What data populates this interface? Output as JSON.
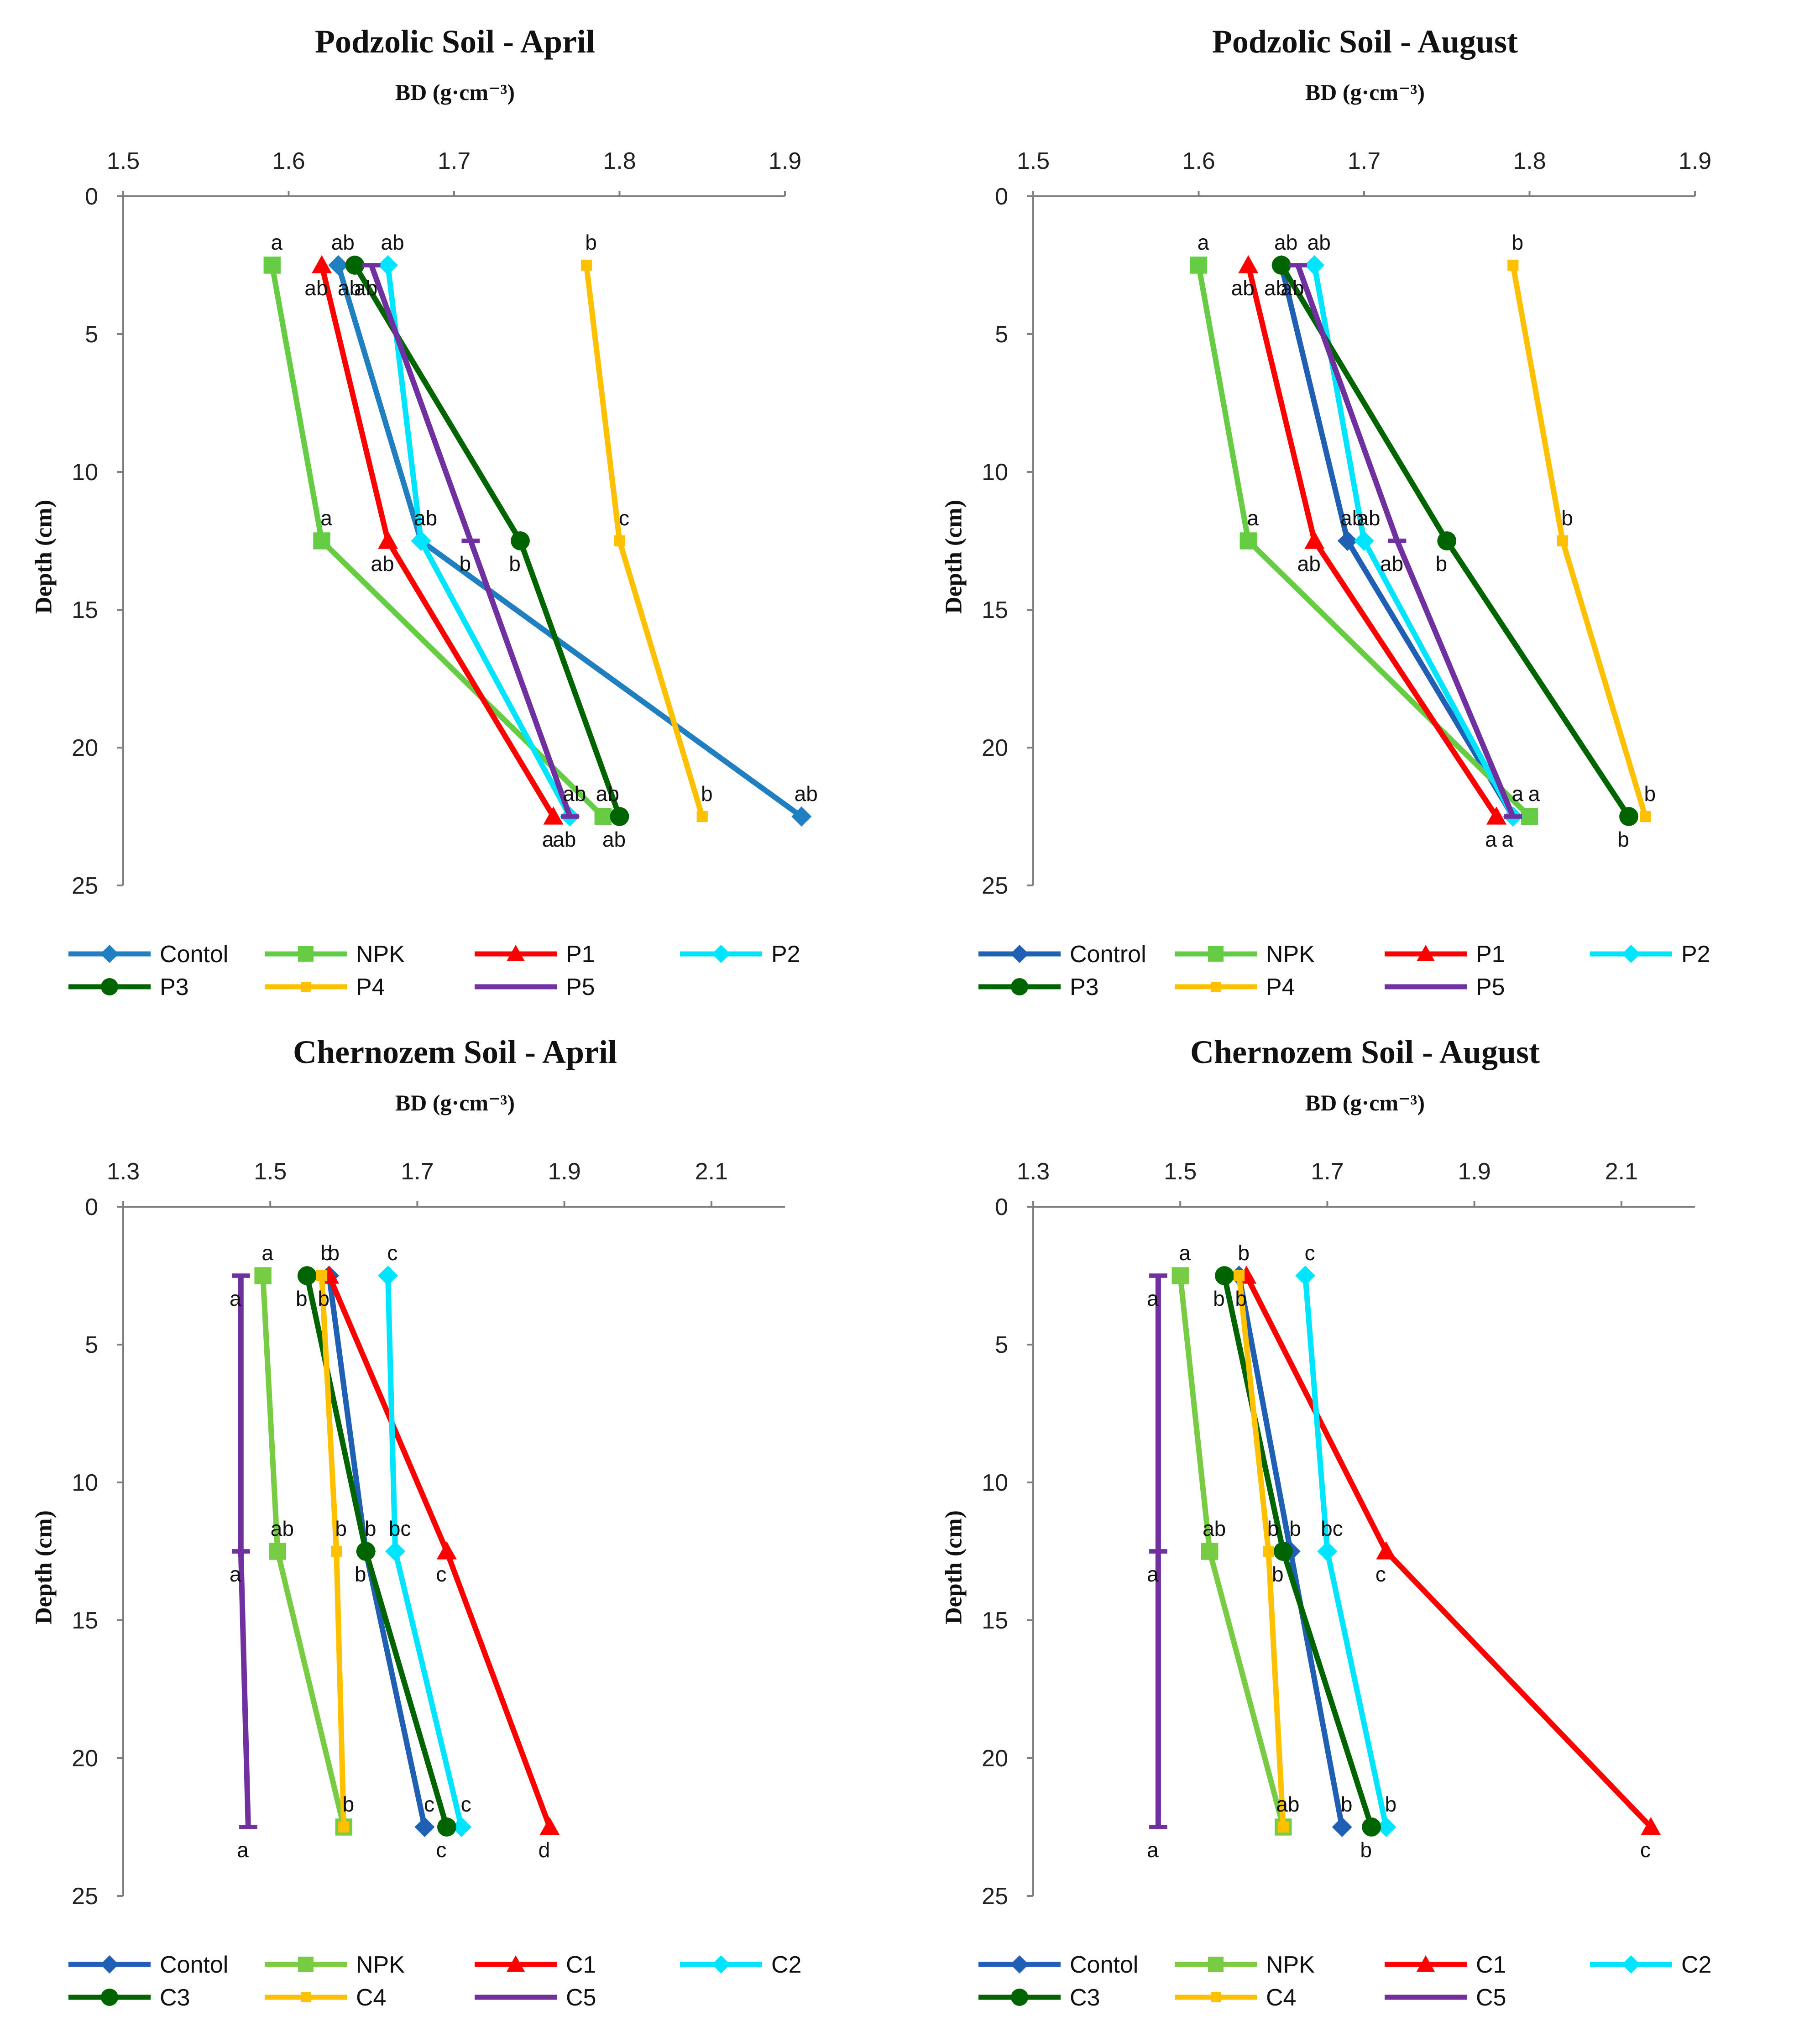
{
  "chart_data": [
    {
      "type": "line",
      "title": "Podzolic Soil - April",
      "xlabel": "BD (g·cm⁻³)",
      "ylabel": "Depth (cm)",
      "xlim": [
        1.5,
        1.9
      ],
      "xticks": [
        "1.5",
        "1.6",
        "1.7",
        "1.8",
        "1.9"
      ],
      "ylim": [
        0,
        25
      ],
      "yticks": [
        "0",
        "5",
        "10",
        "15",
        "20",
        "25"
      ],
      "depths": [
        2.5,
        12.5,
        22.5
      ],
      "series": [
        {
          "name": "Contol",
          "color": "#1f7fc0",
          "marker": "diamond",
          "values": [
            1.63,
            1.68,
            1.91
          ],
          "labels": [
            "ab",
            "ab",
            "ab"
          ]
        },
        {
          "name": "NPK",
          "color": "#66cc44",
          "marker": "square",
          "values": [
            1.59,
            1.62,
            1.79
          ],
          "labels": [
            "a",
            "a",
            "ab"
          ]
        },
        {
          "name": "P1",
          "color": "#ff0000",
          "marker": "triangle",
          "values": [
            1.62,
            1.66,
            1.76
          ],
          "labels": [
            "ab",
            "ab",
            "a"
          ]
        },
        {
          "name": "P2",
          "color": "#00e5ff",
          "marker": "diamond",
          "values": [
            1.66,
            1.68,
            1.77
          ],
          "labels": [
            "ab",
            "ab",
            "ab"
          ]
        },
        {
          "name": "P3",
          "color": "#006400",
          "marker": "circle",
          "values": [
            1.64,
            1.74,
            1.8
          ],
          "labels": [
            "ab",
            "b",
            "ab"
          ]
        },
        {
          "name": "P4",
          "color": "#ffc000",
          "marker": "smallsquare",
          "values": [
            1.78,
            1.8,
            1.85
          ],
          "labels": [
            "b",
            "c",
            "b"
          ]
        },
        {
          "name": "P5",
          "color": "#7030a0",
          "marker": "dash",
          "values": [
            1.65,
            1.71,
            1.77
          ],
          "labels": [
            "ab",
            "b",
            "ab"
          ]
        }
      ]
    },
    {
      "type": "line",
      "title": "Podzolic Soil - August",
      "xlabel": "BD (g·cm⁻³)",
      "ylabel": "Depth (cm)",
      "xlim": [
        1.5,
        1.9
      ],
      "xticks": [
        "1.5",
        "1.6",
        "1.7",
        "1.8",
        "1.9"
      ],
      "ylim": [
        0,
        25
      ],
      "yticks": [
        "0",
        "5",
        "10",
        "15",
        "20",
        "25"
      ],
      "depths": [
        2.5,
        12.5,
        22.5
      ],
      "series": [
        {
          "name": "Control",
          "color": "#1f5fb4",
          "marker": "diamond",
          "values": [
            1.65,
            1.69,
            1.79
          ],
          "labels": [
            "ab",
            "ab",
            "a"
          ]
        },
        {
          "name": "NPK",
          "color": "#66cc44",
          "marker": "square",
          "values": [
            1.6,
            1.63,
            1.8
          ],
          "labels": [
            "a",
            "a",
            "a"
          ]
        },
        {
          "name": "P1",
          "color": "#ff0000",
          "marker": "triangle",
          "values": [
            1.63,
            1.67,
            1.78
          ],
          "labels": [
            "ab",
            "ab",
            "a"
          ]
        },
        {
          "name": "P2",
          "color": "#00e5ff",
          "marker": "diamond",
          "values": [
            1.67,
            1.7,
            1.79
          ],
          "labels": [
            "ab",
            "ab",
            "a"
          ]
        },
        {
          "name": "P3",
          "color": "#006400",
          "marker": "circle",
          "values": [
            1.65,
            1.75,
            1.86
          ],
          "labels": [
            "ab",
            "b",
            "b"
          ]
        },
        {
          "name": "P4",
          "color": "#ffc000",
          "marker": "smallsquare",
          "values": [
            1.79,
            1.82,
            1.87
          ],
          "labels": [
            "b",
            "b",
            "b"
          ]
        },
        {
          "name": "P5",
          "color": "#7030a0",
          "marker": "dash",
          "values": [
            1.66,
            1.72,
            1.79
          ],
          "labels": [
            "ab",
            "ab",
            "a"
          ]
        }
      ]
    },
    {
      "type": "line",
      "title": "Chernozem Soil - April",
      "xlabel": "BD (g·cm⁻³)",
      "ylabel": "Depth (cm)",
      "xlim": [
        1.3,
        2.2
      ],
      "xticks": [
        "1.3",
        "1.5",
        "1.7",
        "1.9",
        "2.1"
      ],
      "ylim": [
        0,
        25
      ],
      "yticks": [
        "0",
        "5",
        "10",
        "15",
        "20",
        "25"
      ],
      "depths": [
        2.5,
        12.5,
        22.5
      ],
      "series": [
        {
          "name": "Contol",
          "color": "#1f5fb4",
          "marker": "diamond",
          "values": [
            1.58,
            1.63,
            1.71
          ],
          "labels": [
            "b",
            "b",
            "c"
          ]
        },
        {
          "name": "NPK",
          "color": "#77cc44",
          "marker": "square",
          "values": [
            1.49,
            1.51,
            1.6
          ],
          "labels": [
            "a",
            "ab",
            "b"
          ]
        },
        {
          "name": "C1",
          "color": "#ff0000",
          "marker": "triangle",
          "values": [
            1.58,
            1.74,
            1.88
          ],
          "labels": [
            "b",
            "c",
            "d"
          ]
        },
        {
          "name": "C2",
          "color": "#00e5ff",
          "marker": "diamond",
          "values": [
            1.66,
            1.67,
            1.76
          ],
          "labels": [
            "c",
            "bc",
            "c"
          ]
        },
        {
          "name": "C3",
          "color": "#006400",
          "marker": "circle",
          "values": [
            1.55,
            1.63,
            1.74
          ],
          "labels": [
            "b",
            "b",
            "c"
          ]
        },
        {
          "name": "C4",
          "color": "#ffc000",
          "marker": "smallsquare",
          "values": [
            1.57,
            1.59,
            1.6
          ],
          "labels": [
            "b",
            "b",
            "b"
          ]
        },
        {
          "name": "C5",
          "color": "#7030a0",
          "marker": "dash",
          "values": [
            1.46,
            1.46,
            1.47
          ],
          "labels": [
            "a",
            "a",
            "a"
          ]
        }
      ]
    },
    {
      "type": "line",
      "title": "Chernozem Soil - August",
      "xlabel": "BD (g·cm⁻³)",
      "ylabel": "Depth (cm)",
      "xlim": [
        1.3,
        2.2
      ],
      "xticks": [
        "1.3",
        "1.5",
        "1.7",
        "1.9",
        "2.1"
      ],
      "ylim": [
        0,
        25
      ],
      "yticks": [
        "0",
        "5",
        "10",
        "15",
        "20",
        "25"
      ],
      "depths": [
        2.5,
        12.5,
        22.5
      ],
      "series": [
        {
          "name": "Contol",
          "color": "#1f5fb4",
          "marker": "diamond",
          "values": [
            1.58,
            1.65,
            1.72
          ],
          "labels": [
            "b",
            "b",
            "b"
          ]
        },
        {
          "name": "NPK",
          "color": "#77cc44",
          "marker": "square",
          "values": [
            1.5,
            1.54,
            1.64
          ],
          "labels": [
            "a",
            "ab",
            "ab"
          ]
        },
        {
          "name": "C1",
          "color": "#ff0000",
          "marker": "triangle",
          "values": [
            1.59,
            1.78,
            2.14
          ],
          "labels": [
            "b",
            "c",
            "c"
          ]
        },
        {
          "name": "C2",
          "color": "#00e5ff",
          "marker": "diamond",
          "values": [
            1.67,
            1.7,
            1.78
          ],
          "labels": [
            "c",
            "bc",
            "b"
          ]
        },
        {
          "name": "C3",
          "color": "#006400",
          "marker": "circle",
          "values": [
            1.56,
            1.64,
            1.76
          ],
          "labels": [
            "b",
            "b",
            "b"
          ]
        },
        {
          "name": "C4",
          "color": "#ffc000",
          "marker": "smallsquare",
          "values": [
            1.58,
            1.62,
            1.64
          ],
          "labels": [
            "b",
            "b",
            "ab"
          ]
        },
        {
          "name": "C5",
          "color": "#7030a0",
          "marker": "dash",
          "values": [
            1.47,
            1.47,
            1.47
          ],
          "labels": [
            "a",
            "a",
            "a"
          ]
        }
      ]
    }
  ]
}
